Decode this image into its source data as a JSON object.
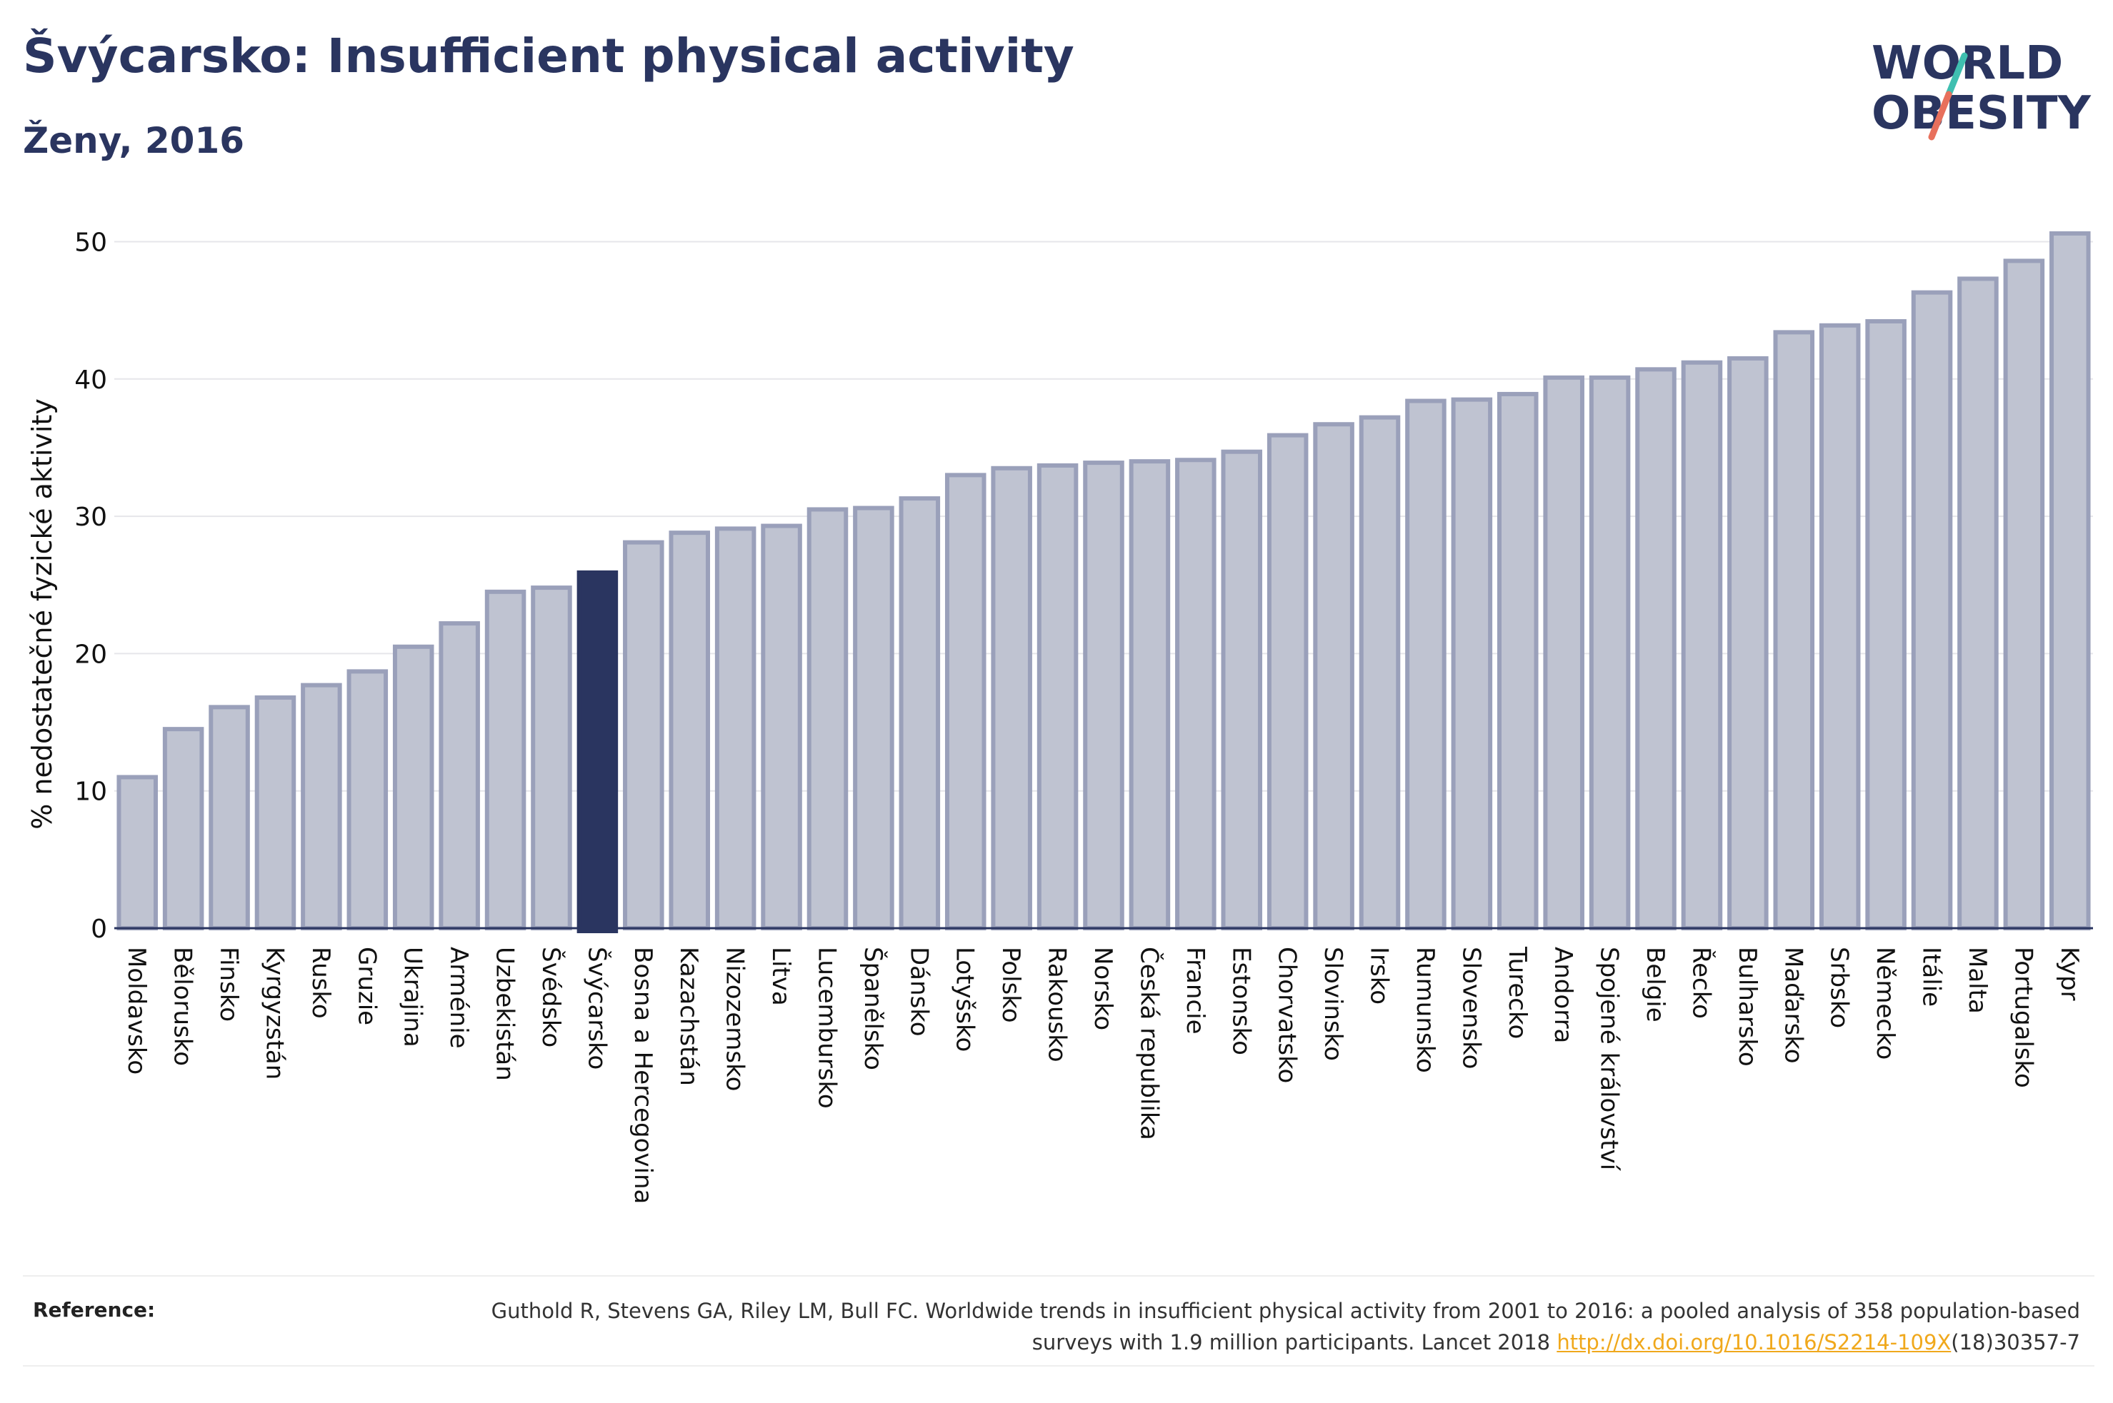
{
  "header": {
    "title": "Švýcarsko: Insufficient physical activity",
    "subtitle": "Ženy, 2016"
  },
  "logo": {
    "line1": "WORLD",
    "line2": "OBESITY",
    "colors": {
      "text": "#2a3560",
      "slash_top": "#3fbfb0",
      "slash_bottom": "#e8705c"
    }
  },
  "chart_data": {
    "type": "bar",
    "title": "",
    "ylabel": "% nedostatečné fyzické aktivity",
    "xlabel": "",
    "ylim": [
      0,
      52
    ],
    "yticks": [
      0,
      10,
      20,
      30,
      40,
      50
    ],
    "grid": true,
    "highlight": "Švýcarsko",
    "colors": {
      "bar": "#bfc3d1",
      "bar_edge": "#9aa0ba",
      "highlight": "#2a3560",
      "grid": "#e6e6ea",
      "axis": "#2a3560"
    },
    "categories": [
      "Moldavsko",
      "Bělorusko",
      "Finsko",
      "Kyrgyzstán",
      "Rusko",
      "Gruzie",
      "Ukrajina",
      "Arménie",
      "Uzbekistán",
      "Švédsko",
      "Švýcarsko",
      "Bosna a Hercegovina",
      "Kazachstán",
      "Nizozemsko",
      "Litva",
      "Lucembursko",
      "Španělsko",
      "Dánsko",
      "Lotyšsko",
      "Polsko",
      "Rakousko",
      "Norsko",
      "Česká republika",
      "Francie",
      "Estonsko",
      "Chorvatsko",
      "Slovinsko",
      "Irsko",
      "Rumunsko",
      "Slovensko",
      "Turecko",
      "Andorra",
      "Spojené království",
      "Belgie",
      "Řecko",
      "Bulharsko",
      "Maďarsko",
      "Srbsko",
      "Německo",
      "Itálie",
      "Malta",
      "Portugalsko",
      "Kypr"
    ],
    "values": [
      11.0,
      14.5,
      16.1,
      16.8,
      17.7,
      18.7,
      20.5,
      22.2,
      24.5,
      24.8,
      25.9,
      28.1,
      28.8,
      29.1,
      29.3,
      30.5,
      30.6,
      31.3,
      33.0,
      33.5,
      33.7,
      33.9,
      34.0,
      34.1,
      34.7,
      35.9,
      36.7,
      37.2,
      38.4,
      38.5,
      38.9,
      40.1,
      40.1,
      40.7,
      41.2,
      41.5,
      43.4,
      43.9,
      44.2,
      46.3,
      47.3,
      48.6,
      50.6
    ]
  },
  "reference": {
    "label": "Reference:",
    "text": "Guthold R, Stevens GA, Riley LM, Bull FC. Worldwide trends in insufficient physical activity from 2001 to 2016: a pooled analysis of 358 population-based surveys with 1.9 million participants. Lancet 2018 ",
    "link": "http://dx.doi.org/10.1016/S2214-109X",
    "suffix": "(18)30357-7"
  }
}
